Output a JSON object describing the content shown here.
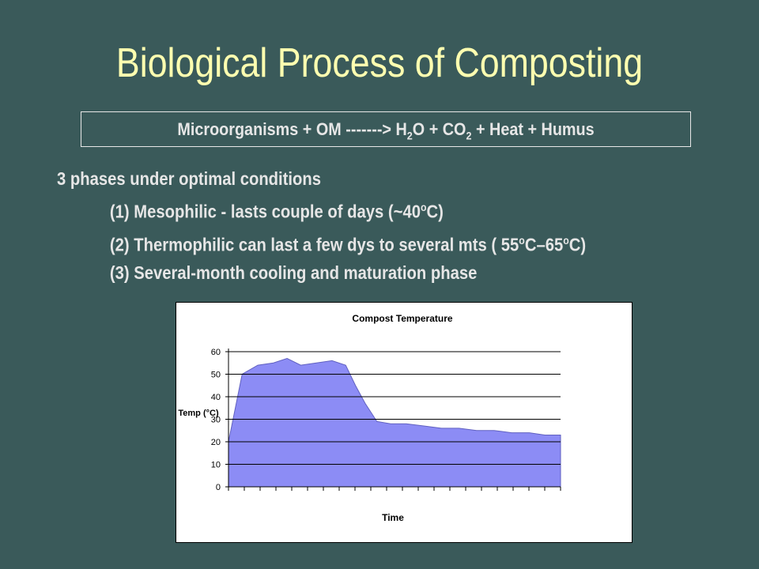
{
  "slide": {
    "title": "Biological Process of Composting",
    "equation": {
      "reactants": "Microorganisms + OM -------> H",
      "h2o_sub": "2",
      "part2": "O + CO",
      "co2_sub": "2",
      "part3": " + Heat + Humus"
    },
    "phases": {
      "heading": "3 phases under optimal conditions",
      "items": [
        {
          "text_a": "(1) Mesophilic - lasts couple of days (~40",
          "sup1": "o",
          "text_b": "C)"
        },
        {
          "text_a": "(2) Thermophilic can last a few dys to several mts ( 55",
          "sup1": "o",
          "text_b": "C–65",
          "sup2": "o",
          "text_c": "C)"
        },
        {
          "text_a": "(3) Several-month cooling and maturation phase"
        }
      ]
    },
    "colors": {
      "background": "#3a5a5a",
      "title": "#ffffb0",
      "text": "#e6e6e6",
      "area_fill": "#8c8cf5"
    }
  },
  "chart_data": {
    "type": "area",
    "title": "Compost Temperature",
    "xlabel": "Time",
    "ylabel": "Temp (°C)",
    "ylim": [
      0,
      60
    ],
    "yticks": [
      "0",
      "10",
      "20",
      "30",
      "40",
      "50",
      "60"
    ],
    "grid": true,
    "series": [
      {
        "x": [
          0,
          0.7,
          1.5,
          2.3,
          3,
          3.7,
          4.5,
          5.3,
          6,
          6.5,
          7,
          7.6,
          8.3,
          9.1,
          10,
          10.9,
          11.8,
          12.7,
          13.6,
          14.5,
          15.4,
          16.2,
          17
        ],
        "values": [
          20,
          50,
          54,
          55,
          57,
          54,
          55,
          56,
          54,
          45,
          37,
          29,
          28,
          28,
          27,
          26,
          26,
          25,
          25,
          24,
          24,
          23,
          23
        ]
      }
    ]
  }
}
